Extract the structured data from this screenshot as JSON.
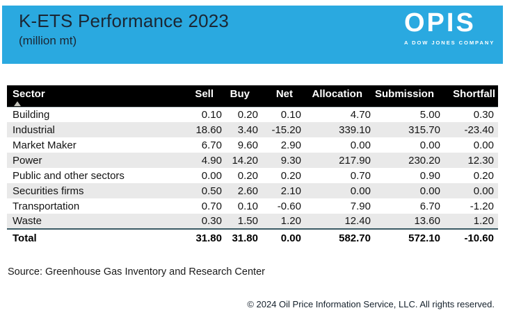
{
  "header": {
    "title": "K-ETS Performance 2023",
    "subtitle": "(million mt)",
    "band_color": "#2AA9E0",
    "logo": {
      "name": "OPIS",
      "tagline": "A DOW JONES COMPANY"
    }
  },
  "table": {
    "columns": [
      "Sector",
      "Sell",
      "Buy",
      "Net",
      "Allocation",
      "Submission",
      "Shortfall"
    ],
    "sorted_column": "Sector",
    "sort_direction": "ascending",
    "rows": [
      [
        "Building",
        "0.10",
        "0.20",
        "0.10",
        "4.70",
        "5.00",
        "0.30"
      ],
      [
        "Industrial",
        "18.60",
        "3.40",
        "-15.20",
        "339.10",
        "315.70",
        "-23.40"
      ],
      [
        "Market Maker",
        "6.70",
        "9.60",
        "2.90",
        "0.00",
        "0.00",
        "0.00"
      ],
      [
        "Public and other sectors",
        "0.00",
        "0.20",
        "0.20",
        "0.70",
        "0.90",
        "0.20"
      ],
      [
        "Power",
        "4.90",
        "14.20",
        "9.30",
        "217.90",
        "230.20",
        "12.30"
      ],
      [
        "Securities firms",
        "0.50",
        "2.60",
        "2.10",
        "0.00",
        "0.00",
        "0.00"
      ],
      [
        "Transportation",
        "0.70",
        "0.10",
        "-0.60",
        "7.90",
        "6.70",
        "-1.20"
      ],
      [
        "Waste",
        "0.30",
        "1.50",
        "1.20",
        "12.40",
        "13.60",
        "1.20"
      ]
    ],
    "row_order": [
      0,
      1,
      2,
      4,
      3,
      5,
      6,
      7
    ],
    "total": [
      "Total",
      "31.80",
      "31.80",
      "0.00",
      "582.70",
      "572.10",
      "-10.60"
    ]
  },
  "footer": {
    "source": "Source: Greenhouse Gas Inventory and Research Center",
    "copyright": "© 2024 Oil Price Information Service, LLC. All rights reserved."
  }
}
